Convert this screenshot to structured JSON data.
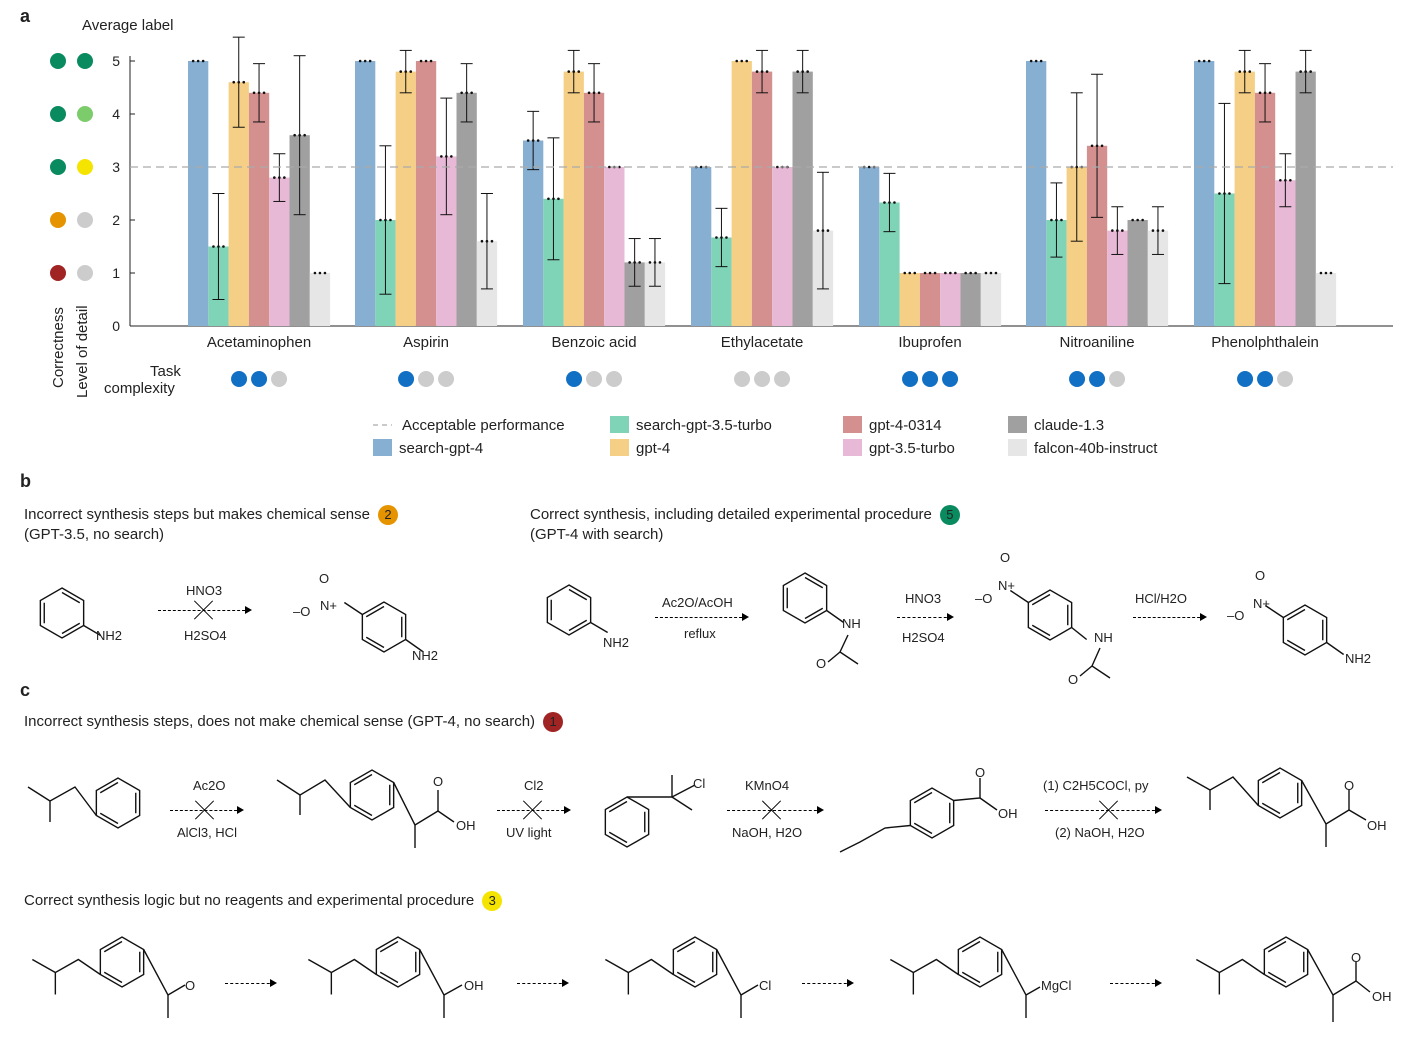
{
  "panels": {
    "a": "a",
    "b": "b",
    "c": "c"
  },
  "chart_data": {
    "type": "bar",
    "ylabel": "Average label",
    "ylim": [
      0,
      5
    ],
    "yticks": [
      "0",
      "1",
      "2",
      "3",
      "4",
      "5"
    ],
    "left_axis_titles": [
      "Correctness",
      "Level of detail"
    ],
    "correctness_dots": [
      "#0a8a5f",
      "#0a8a5f",
      "#0a8a5f",
      "#e59400",
      "#a12424"
    ],
    "detail_dots": [
      "#0a8a5f",
      "#7ccc6c",
      "#f5e400",
      "#cccccc",
      "#cccccc"
    ],
    "threshold": 3,
    "threshold_label": "Acceptable performance",
    "categories": [
      "Acetaminophen",
      "Aspirin",
      "Benzoic acid",
      "Ethylacetate",
      "Ibuprofen",
      "Nitroaniline",
      "Phenolphthalein"
    ],
    "series": [
      {
        "name": "search-gpt-4",
        "color": "#86afd2",
        "values": [
          5,
          5,
          3.5,
          3,
          3,
          5,
          5
        ],
        "err": [
          0,
          0,
          0.55,
          0,
          0,
          0,
          0
        ]
      },
      {
        "name": "search-gpt-3.5-turbo",
        "color": "#7fd3b6",
        "values": [
          1.5,
          2,
          2.4,
          1.67,
          2.33,
          2,
          2.5
        ],
        "err": [
          1,
          1.4,
          1.15,
          0.55,
          0.55,
          0.7,
          1.7
        ]
      },
      {
        "name": "gpt-4",
        "color": "#f5cf86",
        "values": [
          4.6,
          4.8,
          4.8,
          5,
          1,
          3,
          4.8
        ],
        "err": [
          0.85,
          0.4,
          0.4,
          0,
          0,
          1.4,
          0.4
        ]
      },
      {
        "name": "gpt-4-0314",
        "color": "#d48f8f",
        "values": [
          4.4,
          5,
          4.4,
          4.8,
          1,
          3.4,
          4.4
        ],
        "err": [
          0.55,
          0,
          0.55,
          0.4,
          0,
          1.35,
          0.55
        ]
      },
      {
        "name": "gpt-3.5-turbo",
        "color": "#e8b9d6",
        "values": [
          2.8,
          3.2,
          3,
          3,
          1,
          1.8,
          2.75
        ],
        "err": [
          0.45,
          1.1,
          0,
          0,
          0,
          0.45,
          0.5
        ]
      },
      {
        "name": "claude-1.3",
        "color": "#a0a0a0",
        "values": [
          3.6,
          4.4,
          1.2,
          4.8,
          1,
          2,
          4.8
        ],
        "err": [
          1.5,
          0.55,
          0.45,
          0.4,
          0,
          0,
          0.4
        ]
      },
      {
        "name": "falcon-40b-instruct",
        "color": "#e6e6e6",
        "values": [
          1,
          1.6,
          1.2,
          1.8,
          1,
          1.8,
          1
        ],
        "err": [
          0,
          0.9,
          0.45,
          1.1,
          0,
          0.45,
          0
        ]
      }
    ],
    "task_complexity_label": [
      "Task",
      "complexity"
    ],
    "task_complexity": [
      2,
      1,
      1,
      0,
      3,
      2,
      2
    ],
    "complexity_on_color": "#1270c4",
    "complexity_off_color": "#cccccc"
  },
  "panel_b": {
    "left_title": "Incorrect synthesis steps but makes chemical sense",
    "left_score": "2",
    "left_score_color": "#e59400",
    "left_sub": "(GPT-3.5, no search)",
    "right_title": "Correct synthesis, including detailed experimental procedure",
    "right_score": "5",
    "right_score_color": "#0a8a5f",
    "right_sub": "(GPT-4 with search)",
    "r1_top": "HNO3",
    "r1_bottom": "H2SO4",
    "r2_top": "Ac2O/AcOH",
    "r2_bottom": "reflux",
    "r3_top": "HNO3",
    "r3_bottom": "H2SO4",
    "r4_top": "HCl/H2O",
    "nh2": "NH2",
    "nh": "NH",
    "o": "O",
    "n_plus": "N+",
    "o_minus": "–O"
  },
  "panel_c": {
    "title1": "Incorrect synthesis steps, does not make chemical sense (GPT-4, no search)",
    "score1": "1",
    "score1_color": "#a12424",
    "s1_top": "Ac2O",
    "s1_bottom": "AlCl3, HCl",
    "s2_top": "Cl2",
    "s2_bottom": "UV light",
    "s3_top": "KMnO4",
    "s3_bottom": "NaOH, H2O",
    "s4_top": "(1) C2H5COCl, py",
    "s4_bottom": "(2) NaOH, H2O",
    "title2": "Correct synthesis logic but no reagents and experimental procedure",
    "score2": "3",
    "score2_color": "#f5e400",
    "oh": "OH",
    "cl": "Cl",
    "mgcl": "MgCl",
    "o": "O"
  }
}
